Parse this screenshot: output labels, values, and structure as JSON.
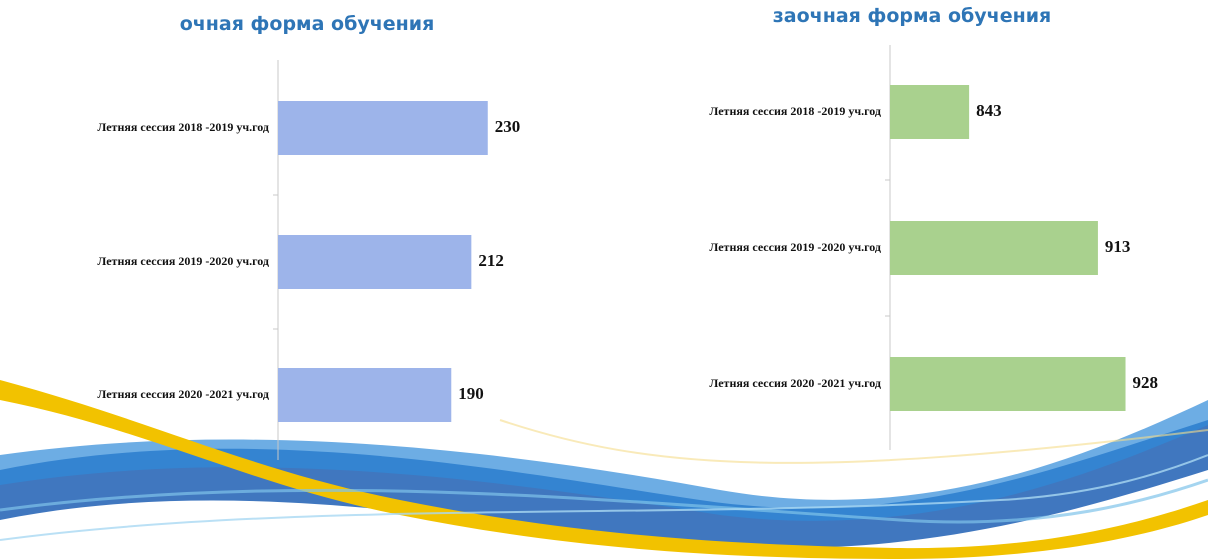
{
  "chart_data": [
    {
      "type": "bar",
      "orientation": "horizontal",
      "title": "очная форма обучения",
      "categories": [
        "Летняя сессия 2018 -2019 уч.год",
        "Летняя сессия 2019 -2020 уч.год",
        "Летняя сессия 2020 -2021 уч.год"
      ],
      "values": [
        230,
        212,
        190
      ],
      "color": "#9db4ea",
      "xlim": [
        0,
        250
      ]
    },
    {
      "type": "bar",
      "orientation": "horizontal",
      "title": "заочная форма обучения",
      "categories": [
        "Летняя сессия 2018 -2019 уч.год",
        "Летняя сессия 2019 -2020 уч.год",
        "Летняя сессия 2020 -2021 уч.год"
      ],
      "values": [
        843,
        913,
        928
      ],
      "color": "#a9d18e",
      "xlim": [
        800,
        950
      ]
    }
  ]
}
